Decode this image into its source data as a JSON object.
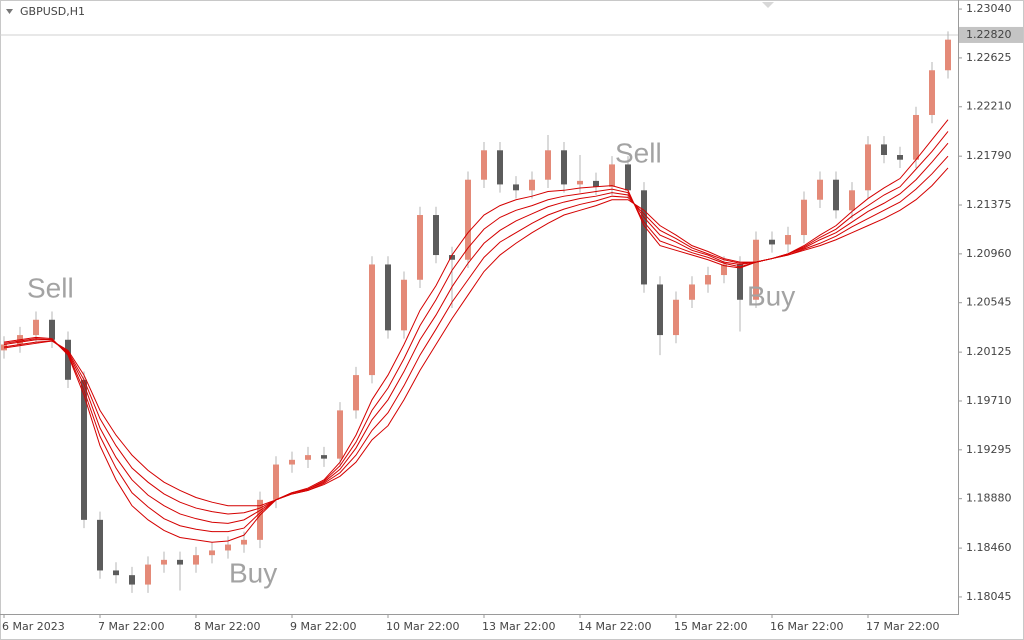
{
  "chart_data": {
    "type": "candlestick",
    "title": "GBPUSD,H1",
    "up_color": "#e48a78",
    "down_color": "#5c5c5c",
    "wick_color": "#b5b5b5",
    "grid": false,
    "ylim": [
      1.179,
      1.231
    ],
    "yticks": [
      {
        "value": 1.2304,
        "label": "1.23040"
      },
      {
        "value": 1.22625,
        "label": "1.22625"
      },
      {
        "value": 1.2221,
        "label": "1.22210"
      },
      {
        "value": 1.2179,
        "label": "1.21790"
      },
      {
        "value": 1.21375,
        "label": "1.21375"
      },
      {
        "value": 1.2096,
        "label": "1.20960"
      },
      {
        "value": 1.20545,
        "label": "1.20545"
      },
      {
        "value": 1.20125,
        "label": "1.20125"
      },
      {
        "value": 1.1971,
        "label": "1.19710"
      },
      {
        "value": 1.19295,
        "label": "1.19295"
      },
      {
        "value": 1.1888,
        "label": "1.18880"
      },
      {
        "value": 1.1846,
        "label": "1.18460"
      },
      {
        "value": 1.18045,
        "label": "1.18045"
      }
    ],
    "current_price": {
      "value": 1.2282,
      "label": "1.22820"
    },
    "annotations": [
      "Sell",
      "Sell",
      "Buy",
      "Buy"
    ],
    "categories": [
      "6 Mar 2023",
      null,
      null,
      null,
      null,
      null,
      "7 Mar 22:00",
      null,
      null,
      null,
      null,
      null,
      "8 Mar 22:00",
      null,
      null,
      null,
      null,
      null,
      "9 Mar 22:00",
      null,
      null,
      null,
      null,
      null,
      "10 Mar 22:00",
      null,
      null,
      null,
      null,
      null,
      "13 Mar 22:00",
      null,
      null,
      null,
      null,
      null,
      "14 Mar 22:00",
      null,
      null,
      null,
      null,
      null,
      "15 Mar 22:00",
      null,
      null,
      null,
      null,
      null,
      "16 Mar 22:00",
      null,
      null,
      null,
      null,
      null,
      "17 Mar 22:00",
      null,
      null,
      null,
      null,
      null
    ],
    "open": [
      1.2014,
      1.2019,
      1.2027,
      1.204,
      1.2023,
      1.1989,
      1.187,
      1.1827,
      1.1823,
      1.1815,
      1.1832,
      1.1836,
      1.1832,
      1.184,
      1.1844,
      1.1849,
      1.1853,
      1.1887,
      1.1917,
      1.1921,
      1.1925,
      1.1922,
      1.1963,
      1.1993,
      1.2087,
      1.2031,
      1.2074,
      1.2129,
      1.2095,
      1.2091,
      1.2159,
      1.2184,
      1.2155,
      1.215,
      1.2159,
      1.2184,
      1.2155,
      1.2158,
      1.2153,
      1.2172,
      1.215,
      1.207,
      1.2027,
      1.2057,
      1.207,
      1.2078,
      1.2087,
      1.2057,
      1.2108,
      1.2104,
      1.2112,
      1.2142,
      1.2159,
      1.2133,
      1.215,
      1.2189,
      1.218,
      1.2176,
      1.2214,
      1.2252
    ],
    "high": [
      1.2026,
      1.2034,
      1.2047,
      1.2047,
      1.203,
      1.1996,
      1.1877,
      1.1834,
      1.183,
      1.1839,
      1.1843,
      1.1843,
      1.1847,
      1.1851,
      1.1856,
      1.186,
      1.1894,
      1.1924,
      1.1928,
      1.1932,
      1.1932,
      1.197,
      1.2,
      1.2094,
      1.2094,
      1.2081,
      1.2136,
      1.2136,
      1.2102,
      1.2166,
      1.2191,
      1.2191,
      1.2162,
      1.2166,
      1.2197,
      1.2191,
      1.218,
      1.2165,
      1.2179,
      1.2179,
      1.2157,
      1.2077,
      1.2064,
      1.2077,
      1.2085,
      1.2094,
      1.2094,
      1.2115,
      1.2115,
      1.2119,
      1.2149,
      1.2166,
      1.2166,
      1.2157,
      1.2196,
      1.2196,
      1.2187,
      1.2221,
      1.2259,
      1.2285
    ],
    "low": [
      1.2007,
      1.2012,
      1.202,
      1.2016,
      1.1982,
      1.1863,
      1.182,
      1.1816,
      1.1808,
      1.1808,
      1.1825,
      1.181,
      1.1825,
      1.1833,
      1.1837,
      1.1842,
      1.1846,
      1.188,
      1.191,
      1.1914,
      1.1915,
      1.1915,
      1.1956,
      1.1986,
      1.2024,
      1.2024,
      1.2067,
      1.2088,
      1.205,
      1.2084,
      1.2152,
      1.2148,
      1.2143,
      1.2143,
      1.2152,
      1.2148,
      1.2148,
      1.2146,
      1.2146,
      1.2143,
      1.2063,
      1.201,
      1.202,
      1.205,
      1.2063,
      1.2071,
      1.203,
      1.205,
      1.2097,
      1.2097,
      1.2105,
      1.2135,
      1.2126,
      1.2126,
      1.2143,
      1.2173,
      1.2169,
      1.2169,
      1.2207,
      1.2245
    ],
    "close": [
      1.2019,
      1.2027,
      1.204,
      1.2023,
      1.1989,
      1.187,
      1.1827,
      1.1823,
      1.1815,
      1.1832,
      1.1836,
      1.1832,
      1.184,
      1.1844,
      1.1849,
      1.1853,
      1.1887,
      1.1917,
      1.1921,
      1.1925,
      1.1922,
      1.1963,
      1.1993,
      1.2087,
      1.2031,
      1.2074,
      1.2129,
      1.2095,
      1.2091,
      1.2159,
      1.2184,
      1.2155,
      1.215,
      1.2159,
      1.2184,
      1.2155,
      1.2158,
      1.2153,
      1.2172,
      1.215,
      1.207,
      1.2027,
      1.2057,
      1.207,
      1.2078,
      1.2087,
      1.2057,
      1.2108,
      1.2104,
      1.2112,
      1.2142,
      1.2159,
      1.2133,
      1.215,
      1.2189,
      1.218,
      1.2176,
      1.2214,
      1.2252,
      1.2278
    ],
    "series": [
      {
        "color": "#d40000",
        "values": [
          1.2021,
          1.2023,
          1.2025,
          1.2024,
          1.201,
          1.1976,
          1.1933,
          1.1904,
          1.1882,
          1.187,
          1.1861,
          1.1855,
          1.1853,
          1.1851,
          1.1852,
          1.1857,
          1.1874,
          1.1887,
          1.1893,
          1.1897,
          1.1904,
          1.1919,
          1.1942,
          1.1972,
          1.1993,
          1.2019,
          1.2048,
          1.2069,
          1.2095,
          1.2114,
          1.2129,
          1.2137,
          1.2142,
          1.2145,
          1.2149,
          1.215,
          1.2152,
          1.2153,
          1.2154,
          1.215,
          1.212,
          1.2103,
          1.2099,
          1.2095,
          1.2091,
          1.2086,
          1.2084,
          1.2089,
          1.2092,
          1.2096,
          1.2103,
          1.2112,
          1.212,
          1.2132,
          1.2143,
          1.2152,
          1.216,
          1.2176,
          1.2193,
          1.221
        ]
      },
      {
        "color": "#d40000",
        "values": [
          1.202,
          1.2022,
          1.2024,
          1.2023,
          1.2011,
          1.198,
          1.1941,
          1.1914,
          1.1893,
          1.1881,
          1.1871,
          1.1865,
          1.1862,
          1.186,
          1.186,
          1.1863,
          1.1876,
          1.1887,
          1.1893,
          1.1896,
          1.1903,
          1.1916,
          1.1936,
          1.1963,
          1.1982,
          1.2007,
          1.2035,
          1.2057,
          1.2082,
          1.2101,
          1.2117,
          1.2127,
          1.2133,
          1.2137,
          1.2142,
          1.2145,
          1.2147,
          1.2149,
          1.2151,
          1.2148,
          1.2123,
          1.2107,
          1.2102,
          1.2097,
          1.2093,
          1.2088,
          1.2085,
          1.2089,
          1.2092,
          1.2096,
          1.2102,
          1.211,
          1.2117,
          1.2128,
          1.2137,
          1.2146,
          1.2153,
          1.2168,
          1.2183,
          1.22
        ]
      },
      {
        "color": "#d40000",
        "values": [
          1.2019,
          1.2021,
          1.2023,
          1.2023,
          1.2012,
          1.1985,
          1.1948,
          1.1923,
          1.1904,
          1.1891,
          1.1882,
          1.1875,
          1.1871,
          1.1868,
          1.1867,
          1.187,
          1.1878,
          1.1887,
          1.1893,
          1.1896,
          1.1902,
          1.1913,
          1.1931,
          1.1955,
          1.1972,
          1.1996,
          1.2023,
          1.2044,
          1.2068,
          1.2088,
          1.2105,
          1.2116,
          1.2124,
          1.213,
          1.2136,
          1.214,
          1.2143,
          1.2145,
          1.2148,
          1.2146,
          1.2127,
          1.2112,
          1.2106,
          1.2099,
          1.2095,
          1.2089,
          1.2087,
          1.2089,
          1.2092,
          1.2096,
          1.2101,
          1.2108,
          1.2114,
          1.2123,
          1.2132,
          1.2139,
          1.2147,
          1.2159,
          1.2174,
          1.219
        ]
      },
      {
        "color": "#d40000",
        "values": [
          1.2017,
          1.2019,
          1.2021,
          1.2022,
          1.2013,
          1.1989,
          1.1956,
          1.1933,
          1.1914,
          1.1902,
          1.1892,
          1.1885,
          1.188,
          1.1877,
          1.1875,
          1.1876,
          1.188,
          1.1887,
          1.1892,
          1.1895,
          1.1901,
          1.191,
          1.1925,
          1.1946,
          1.1961,
          1.1984,
          1.201,
          1.2032,
          1.2055,
          1.2074,
          1.2093,
          1.2106,
          1.2114,
          1.2122,
          1.2129,
          1.2134,
          1.2138,
          1.2141,
          1.2145,
          1.2144,
          1.213,
          1.2116,
          1.2109,
          1.2101,
          1.2096,
          1.2091,
          1.2088,
          1.2089,
          1.2092,
          1.2095,
          1.21,
          1.2105,
          1.2111,
          1.2119,
          1.2126,
          1.2133,
          1.214,
          1.2151,
          1.2164,
          1.2179
        ]
      },
      {
        "color": "#d40000",
        "values": [
          1.2016,
          1.2018,
          1.202,
          1.2022,
          1.2014,
          1.1993,
          1.1963,
          1.1942,
          1.1925,
          1.1912,
          1.1902,
          1.1895,
          1.1889,
          1.1885,
          1.1882,
          1.1882,
          1.1882,
          1.1887,
          1.1892,
          1.1895,
          1.19,
          1.1907,
          1.1919,
          1.1938,
          1.195,
          1.1972,
          1.1997,
          1.2019,
          1.2041,
          1.2061,
          1.2081,
          1.2095,
          1.2105,
          1.2114,
          1.2122,
          1.2129,
          1.2133,
          1.2137,
          1.2142,
          1.2142,
          1.2133,
          1.212,
          1.2112,
          1.2103,
          1.2098,
          1.2092,
          1.2089,
          1.2089,
          1.2092,
          1.2095,
          1.2099,
          1.2103,
          1.2108,
          1.2114,
          1.212,
          1.2126,
          1.2133,
          1.2142,
          1.2154,
          1.2169
        ]
      }
    ]
  }
}
